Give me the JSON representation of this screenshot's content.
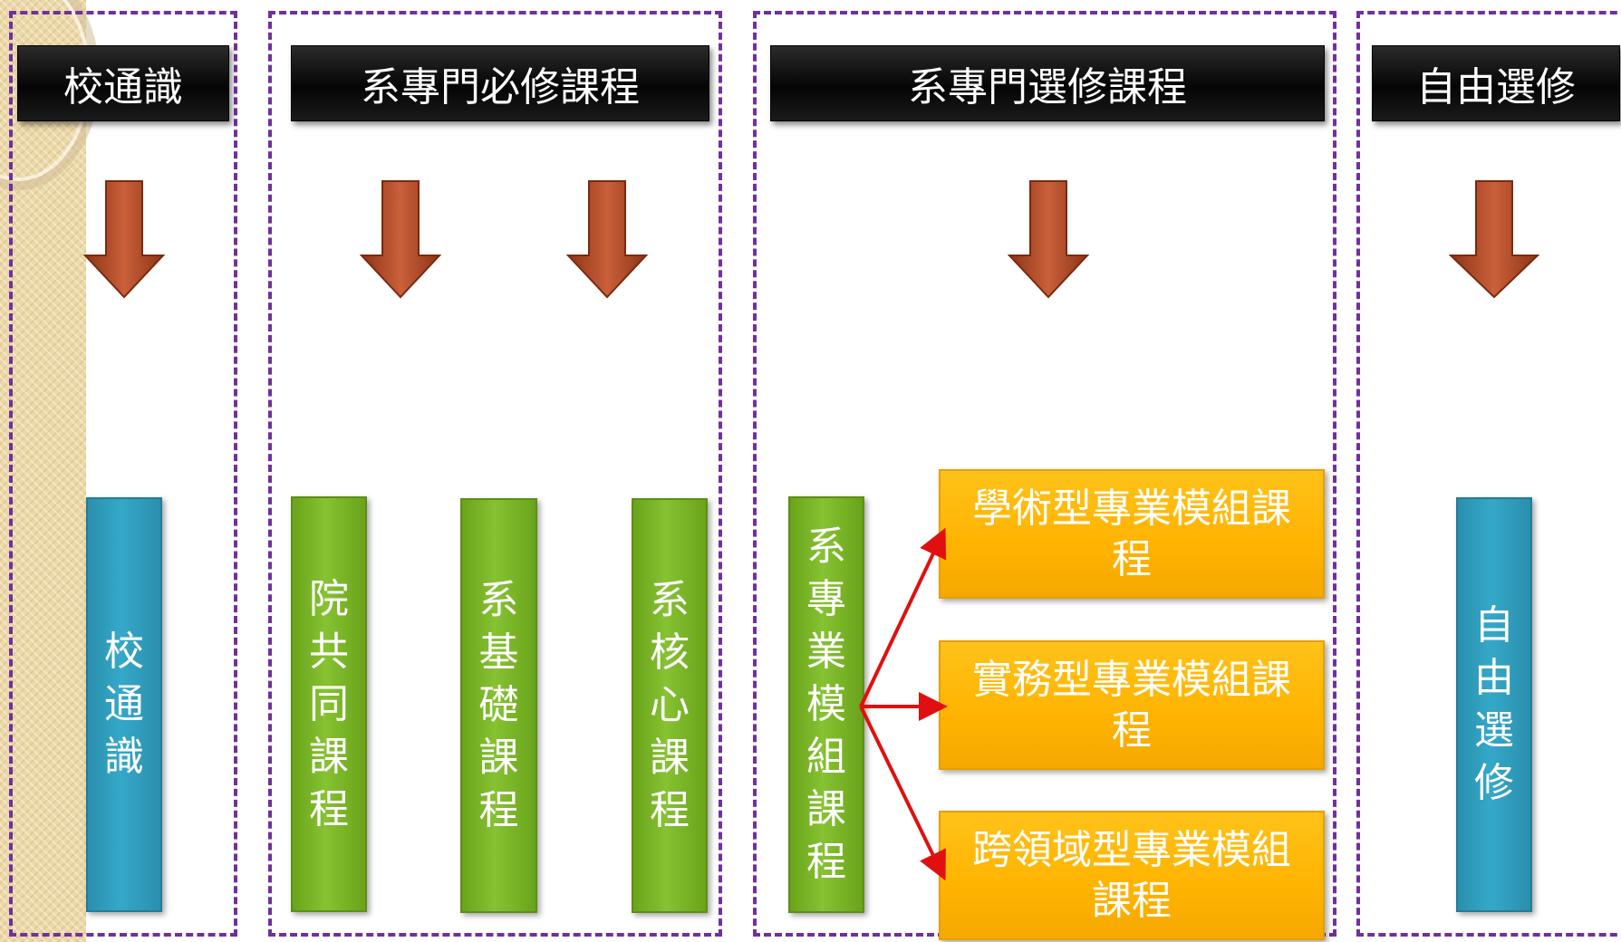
{
  "headers": {
    "general_ed": "校通識",
    "dept_required": "系專門必修課程",
    "dept_elective": "系專門選修課程",
    "free_elective": "自由選修"
  },
  "boxes": {
    "general_ed": "校通識",
    "college_common": "院共同課程",
    "dept_basic": "系基礎課程",
    "dept_core": "系核心課程",
    "dept_module": "系專業模組課程",
    "free_elective": "自由選修"
  },
  "modules": {
    "academic": "學術型專業模組課程",
    "practical": "實務型專業模組課程",
    "cross_domain": "跨領域型專業模組課程"
  },
  "colors": {
    "dash": "#7030a0",
    "header_bg": "#0b0b0b",
    "arrow": "#c0502a",
    "blue_box": "#35a8c9",
    "green_box": "#86c232",
    "orange_box": "#ffb300",
    "branch_arrow": "#e01010"
  }
}
